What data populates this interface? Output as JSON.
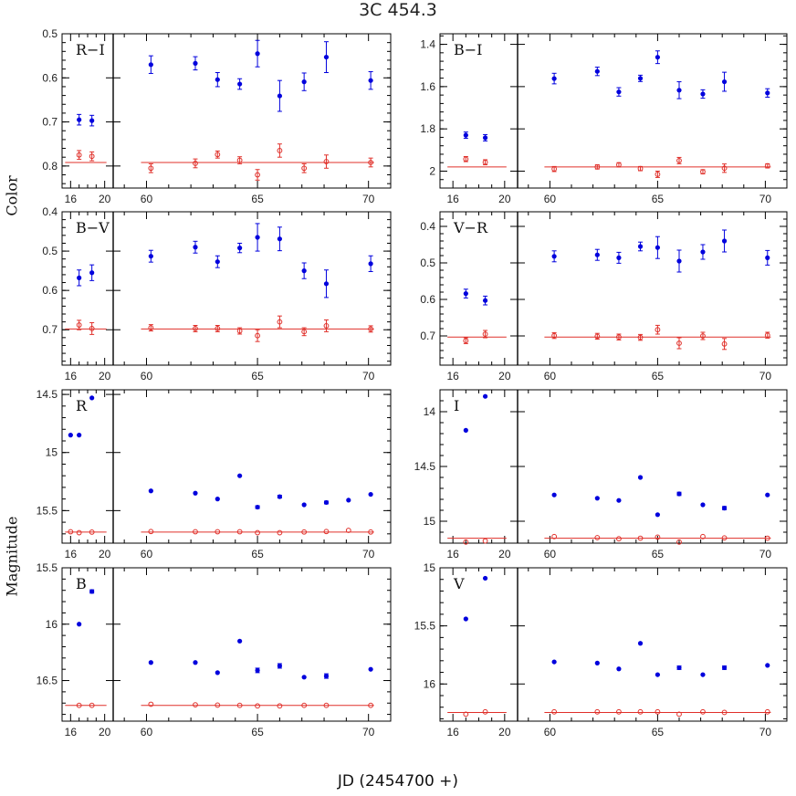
{
  "title": "3C 454.3",
  "xlabel": "JD (2454700 +)",
  "ylabel_color": "Color",
  "ylabel_mag": "Magnitude",
  "colors": {
    "target": "#0000dd",
    "comparison": "#e0302a",
    "axis": "#000000"
  },
  "chart_data": [
    {
      "type": "scatter",
      "panel": "R-I",
      "label": "R−I",
      "ylim": [
        0.5,
        0.85
      ],
      "yticks": [
        "0.5",
        "0.6",
        "0.7",
        "0.8"
      ],
      "inverted": true,
      "errorbars": true,
      "ref_line": 0.792,
      "series": [
        {
          "style": "filled",
          "x": [
            17,
            18.5,
            60.2,
            62.2,
            63.2,
            64.2,
            65.0,
            66.0,
            67.1,
            68.1,
            70.1
          ],
          "y": [
            0.695,
            0.697,
            0.57,
            0.567,
            0.604,
            0.614,
            0.545,
            0.641,
            0.609,
            0.553,
            0.606
          ],
          "err": [
            0.012,
            0.012,
            0.02,
            0.015,
            0.016,
            0.012,
            0.03,
            0.035,
            0.02,
            0.035,
            0.02
          ]
        },
        {
          "style": "open",
          "x": [
            17,
            18.5,
            60.2,
            62.2,
            63.2,
            64.2,
            65.0,
            66.0,
            67.1,
            68.1,
            70.1
          ],
          "y": [
            0.775,
            0.778,
            0.805,
            0.794,
            0.774,
            0.787,
            0.82,
            0.765,
            0.805,
            0.79,
            0.792
          ],
          "err": [
            0.01,
            0.01,
            0.01,
            0.01,
            0.008,
            0.008,
            0.012,
            0.015,
            0.01,
            0.015,
            0.01
          ]
        }
      ]
    },
    {
      "type": "scatter",
      "panel": "B-I",
      "label": "B−I",
      "ylim": [
        1.35,
        2.08
      ],
      "yticks": [
        "1.4",
        "1.6",
        "1.8",
        "2"
      ],
      "inverted": true,
      "errorbars": true,
      "ref_line": 1.98,
      "series": [
        {
          "style": "filled",
          "x": [
            17,
            18.5,
            60.2,
            62.2,
            63.2,
            64.2,
            65.0,
            66.0,
            67.1,
            68.1,
            70.1
          ],
          "y": [
            1.83,
            1.842,
            1.562,
            1.528,
            1.625,
            1.561,
            1.461,
            1.617,
            1.635,
            1.577,
            1.63
          ],
          "err": [
            0.015,
            0.015,
            0.025,
            0.02,
            0.02,
            0.015,
            0.03,
            0.04,
            0.02,
            0.045,
            0.02
          ]
        },
        {
          "style": "open",
          "x": [
            17,
            18.5,
            60.2,
            62.2,
            63.2,
            64.2,
            65.0,
            66.0,
            67.1,
            68.1,
            70.1
          ],
          "y": [
            1.943,
            1.958,
            1.99,
            1.98,
            1.97,
            1.988,
            2.015,
            1.95,
            2.003,
            1.986,
            1.975
          ],
          "err": [
            0.012,
            0.012,
            0.012,
            0.01,
            0.01,
            0.01,
            0.015,
            0.015,
            0.01,
            0.02,
            0.01
          ]
        }
      ]
    },
    {
      "type": "scatter",
      "panel": "B-V",
      "label": "B−V",
      "ylim": [
        0.4,
        0.79
      ],
      "yticks": [
        "0.4",
        "0.5",
        "0.6",
        "0.7"
      ],
      "inverted": true,
      "errorbars": true,
      "ref_line": 0.698,
      "series": [
        {
          "style": "filled",
          "x": [
            17,
            18.5,
            60.2,
            62.2,
            63.2,
            64.2,
            65.0,
            66.0,
            67.1,
            68.1,
            70.1
          ],
          "y": [
            0.568,
            0.555,
            0.513,
            0.49,
            0.527,
            0.492,
            0.465,
            0.469,
            0.55,
            0.583,
            0.532
          ],
          "err": [
            0.02,
            0.02,
            0.015,
            0.015,
            0.015,
            0.012,
            0.035,
            0.03,
            0.02,
            0.035,
            0.02
          ]
        },
        {
          "style": "open",
          "x": [
            17,
            18.5,
            60.2,
            62.2,
            63.2,
            64.2,
            65.0,
            66.0,
            67.1,
            68.1,
            70.1
          ],
          "y": [
            0.688,
            0.697,
            0.695,
            0.697,
            0.697,
            0.703,
            0.715,
            0.68,
            0.705,
            0.69,
            0.698
          ],
          "err": [
            0.012,
            0.015,
            0.008,
            0.008,
            0.008,
            0.008,
            0.015,
            0.015,
            0.01,
            0.015,
            0.008
          ]
        }
      ]
    },
    {
      "type": "scatter",
      "panel": "V-R",
      "label": "V−R",
      "ylim": [
        0.36,
        0.78
      ],
      "yticks": [
        "0.4",
        "0.5",
        "0.6",
        "0.7"
      ],
      "inverted": true,
      "errorbars": true,
      "ref_line": 0.703,
      "series": [
        {
          "style": "filled",
          "x": [
            17,
            18.5,
            60.2,
            62.2,
            63.2,
            64.2,
            65.0,
            66.0,
            67.1,
            68.1,
            70.1
          ],
          "y": [
            0.584,
            0.603,
            0.482,
            0.478,
            0.486,
            0.455,
            0.458,
            0.495,
            0.47,
            0.44,
            0.486
          ],
          "err": [
            0.012,
            0.012,
            0.015,
            0.015,
            0.015,
            0.012,
            0.03,
            0.03,
            0.02,
            0.03,
            0.02
          ]
        },
        {
          "style": "open",
          "x": [
            17,
            18.5,
            60.2,
            62.2,
            63.2,
            64.2,
            65.0,
            66.0,
            67.1,
            68.1,
            70.1
          ],
          "y": [
            0.713,
            0.695,
            0.699,
            0.701,
            0.703,
            0.704,
            0.683,
            0.72,
            0.7,
            0.722,
            0.698
          ],
          "err": [
            0.008,
            0.01,
            0.008,
            0.008,
            0.008,
            0.008,
            0.012,
            0.015,
            0.01,
            0.015,
            0.008
          ]
        }
      ]
    },
    {
      "type": "scatter",
      "panel": "R",
      "label": "R",
      "ylim": [
        14.46,
        15.78
      ],
      "yticks": [
        "14.5",
        "15",
        "15.5"
      ],
      "inverted": true,
      "errorbars": false,
      "ref_line": 15.685,
      "series": [
        {
          "style": "filled",
          "x": [
            16,
            17,
            18.5,
            60.2,
            62.2,
            63.2,
            64.2,
            65.0,
            66.0,
            67.1,
            68.1,
            69.1,
            70.1
          ],
          "y": [
            14.85,
            14.85,
            14.53,
            15.33,
            15.35,
            15.4,
            15.2,
            15.47,
            15.38,
            15.45,
            15.43,
            15.41,
            15.36
          ],
          "err": [
            0,
            0,
            0,
            0,
            0,
            0,
            0,
            0.012,
            0.012,
            0,
            0.012,
            0,
            0
          ]
        },
        {
          "style": "open",
          "x": [
            16,
            17,
            18.5,
            60.2,
            62.2,
            63.2,
            64.2,
            65.0,
            66.0,
            67.1,
            68.1,
            69.1,
            70.1
          ],
          "y": [
            15.682,
            15.69,
            15.685,
            15.68,
            15.682,
            15.682,
            15.682,
            15.69,
            15.69,
            15.684,
            15.68,
            15.67,
            15.684
          ],
          "err": [
            0,
            0,
            0,
            0,
            0,
            0,
            0,
            0,
            0,
            0,
            0,
            0,
            0
          ]
        }
      ]
    },
    {
      "type": "scatter",
      "panel": "I",
      "label": "I",
      "ylim": [
        13.8,
        15.2
      ],
      "yticks": [
        "14",
        "14.5",
        "15"
      ],
      "inverted": true,
      "errorbars": false,
      "ref_line": 15.155,
      "series": [
        {
          "style": "filled",
          "x": [
            17,
            18.5,
            60.2,
            62.2,
            63.2,
            64.2,
            65.0,
            66.0,
            67.1,
            68.1,
            70.1
          ],
          "y": [
            14.17,
            13.86,
            14.76,
            14.79,
            14.81,
            14.6,
            14.94,
            14.75,
            14.85,
            14.88,
            14.76
          ],
          "err": [
            0,
            0,
            0,
            0,
            0,
            0,
            0,
            0.015,
            0,
            0.015,
            0
          ]
        },
        {
          "style": "open",
          "x": [
            17,
            18.5,
            60.2,
            62.2,
            63.2,
            64.2,
            65.0,
            66.0,
            67.1,
            68.1,
            70.1
          ],
          "y": [
            15.19,
            15.18,
            15.14,
            15.15,
            15.16,
            15.155,
            15.145,
            15.19,
            15.14,
            15.152,
            15.155
          ],
          "err": [
            0,
            0,
            0,
            0,
            0,
            0,
            0,
            0,
            0,
            0,
            0
          ]
        }
      ]
    },
    {
      "type": "scatter",
      "panel": "B",
      "label": "B",
      "ylim": [
        15.5,
        16.86
      ],
      "yticks": [
        "15.5",
        "16",
        "16.5"
      ],
      "inverted": true,
      "errorbars": false,
      "ref_line": 16.72,
      "series": [
        {
          "style": "filled",
          "x": [
            17,
            18.5,
            60.2,
            62.2,
            63.2,
            64.2,
            65.0,
            66.0,
            67.1,
            68.1,
            70.1
          ],
          "y": [
            16.0,
            15.71,
            16.34,
            16.34,
            16.43,
            16.15,
            16.41,
            16.37,
            16.47,
            16.46,
            16.4
          ],
          "err": [
            0,
            0.015,
            0,
            0,
            0,
            0,
            0.02,
            0.02,
            0,
            0.02,
            0
          ]
        },
        {
          "style": "open",
          "x": [
            17,
            18.5,
            60.2,
            62.2,
            63.2,
            64.2,
            65.0,
            66.0,
            67.1,
            68.1,
            70.1
          ],
          "y": [
            16.72,
            16.72,
            16.71,
            16.715,
            16.718,
            16.72,
            16.725,
            16.725,
            16.72,
            16.72,
            16.72
          ],
          "err": [
            0,
            0,
            0,
            0,
            0,
            0,
            0,
            0,
            0,
            0,
            0
          ]
        }
      ]
    },
    {
      "type": "scatter",
      "panel": "V",
      "label": "V",
      "ylim": [
        15.0,
        16.32
      ],
      "yticks": [
        "15",
        "15.5",
        "16"
      ],
      "inverted": true,
      "errorbars": false,
      "ref_line": 16.245,
      "series": [
        {
          "style": "filled",
          "x": [
            17,
            18.5,
            60.2,
            62.2,
            63.2,
            64.2,
            65.0,
            66.0,
            67.1,
            68.1,
            70.1
          ],
          "y": [
            15.44,
            15.09,
            15.81,
            15.82,
            15.87,
            15.65,
            15.92,
            15.86,
            15.92,
            15.86,
            15.84
          ],
          "err": [
            0,
            0,
            0,
            0,
            0,
            0,
            0,
            0.015,
            0,
            0.015,
            0
          ]
        },
        {
          "style": "open",
          "x": [
            17,
            18.5,
            60.2,
            62.2,
            63.2,
            64.2,
            65.0,
            66.0,
            67.1,
            68.1,
            70.1
          ],
          "y": [
            16.26,
            16.24,
            16.24,
            16.24,
            16.24,
            16.24,
            16.24,
            16.26,
            16.24,
            16.245,
            16.24
          ],
          "err": [
            0,
            0,
            0,
            0,
            0,
            0,
            0,
            0,
            0,
            0,
            0
          ]
        }
      ]
    }
  ],
  "xticks_left": [
    "16",
    "20"
  ],
  "xticks_right": [
    "60",
    "65",
    "70"
  ]
}
